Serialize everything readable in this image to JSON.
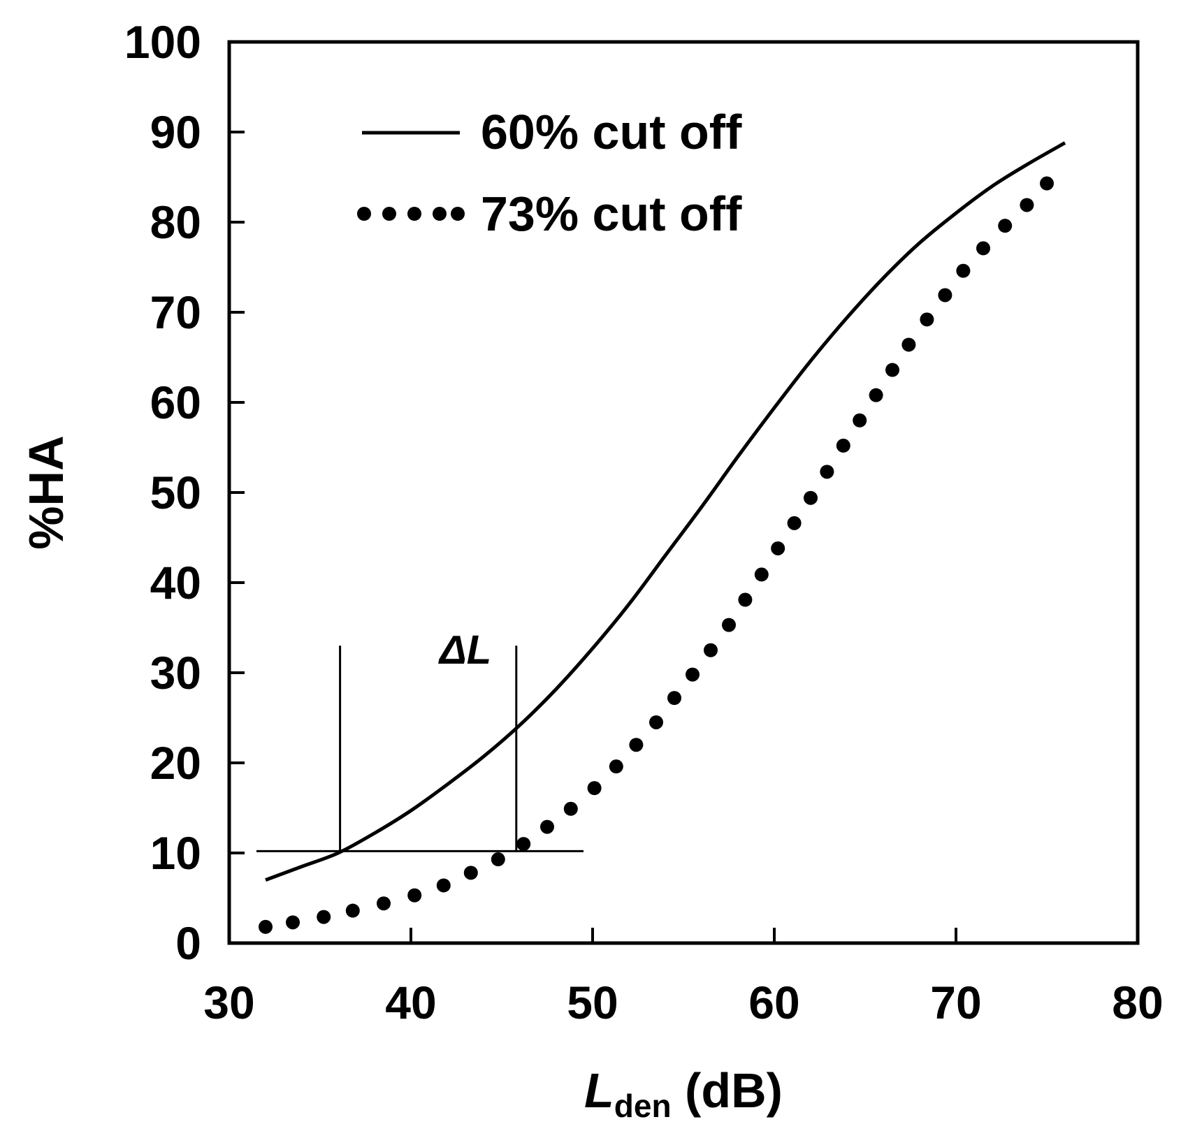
{
  "chart_data": {
    "type": "line",
    "xlabel": {
      "main": "L",
      "sub": "den",
      "unit": " (dB)"
    },
    "ylabel": "%HA",
    "xlim": [
      30,
      80
    ],
    "ylim": [
      0,
      100
    ],
    "xticks": [
      30,
      40,
      50,
      60,
      70,
      80
    ],
    "yticks": [
      0,
      10,
      20,
      30,
      40,
      50,
      60,
      70,
      80,
      90,
      100
    ],
    "grid": false,
    "legend_position": "top-left",
    "series": [
      {
        "name": "60% cut off",
        "style": "solid",
        "x": [
          32,
          34,
          36,
          38,
          40,
          42,
          44,
          46,
          48,
          50,
          52,
          54,
          56,
          58,
          60,
          62,
          64,
          66,
          68,
          70,
          72,
          74,
          76
        ],
        "y": [
          7,
          8.5,
          10,
          12.2,
          14.7,
          17.6,
          20.7,
          24.2,
          28.2,
          32.7,
          37.6,
          43,
          48.4,
          54,
          59.4,
          64.6,
          69.4,
          73.8,
          77.7,
          81,
          84,
          86.5,
          88.8
        ]
      },
      {
        "name": "73% cut off",
        "style": "dotted",
        "x": [
          32,
          33.5,
          35.2,
          36.8,
          38.5,
          40.2,
          41.8,
          43.3,
          44.8,
          46.2,
          47.5,
          48.8,
          50.1,
          51.3,
          52.4,
          53.5,
          54.5,
          55.5,
          56.5,
          57.5,
          58.4,
          59.3,
          60.2,
          61.1,
          62,
          62.9,
          63.8,
          64.7,
          65.6,
          66.5,
          67.4,
          68.4,
          69.4,
          70.4,
          71.5,
          72.7,
          73.9,
          75
        ],
        "y": [
          1.8,
          2.3,
          2.9,
          3.6,
          4.4,
          5.3,
          6.4,
          7.8,
          9.3,
          11,
          12.9,
          14.9,
          17.2,
          19.6,
          22,
          24.5,
          27.2,
          29.8,
          32.5,
          35.3,
          38.1,
          40.9,
          43.8,
          46.6,
          49.4,
          52.3,
          55.2,
          58,
          60.8,
          63.6,
          66.4,
          69.2,
          71.9,
          74.6,
          77.1,
          79.6,
          81.9,
          84.3
        ]
      }
    ],
    "annotations": [
      {
        "text": "ΔL",
        "x": 43,
        "y": 31
      },
      {
        "kind": "hline",
        "x1": 31.5,
        "x2": 49.5,
        "y": 10.2
      },
      {
        "kind": "vline",
        "x": 36.1,
        "y1": 10.2,
        "y2": 33
      },
      {
        "kind": "vline",
        "x": 45.8,
        "y1": 10.2,
        "y2": 33
      }
    ]
  }
}
